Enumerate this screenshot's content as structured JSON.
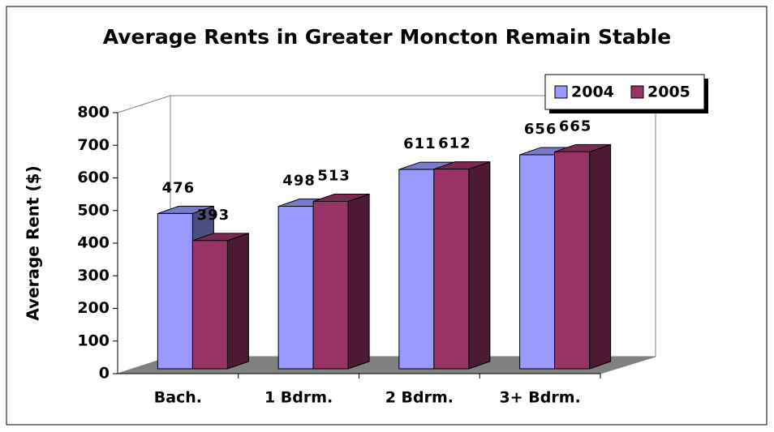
{
  "chart_data": {
    "type": "bar3d",
    "title": "Average Rents in Greater Moncton Remain Stable",
    "y_label": "Average Rent ($)",
    "categories": [
      "Bach.",
      "1 Bdrm.",
      "2 Bdrm.",
      "3+ Bdrm."
    ],
    "series": [
      {
        "name": "2004",
        "color": "#9999ff",
        "values": [
          476,
          498,
          611,
          656
        ]
      },
      {
        "name": "2005",
        "color": "#993366",
        "values": [
          393,
          513,
          612,
          665
        ]
      }
    ],
    "ylim": [
      0,
      800
    ],
    "yticks": [
      0,
      100,
      200,
      300,
      400,
      500,
      600,
      700,
      800
    ],
    "legend": "top-right"
  }
}
